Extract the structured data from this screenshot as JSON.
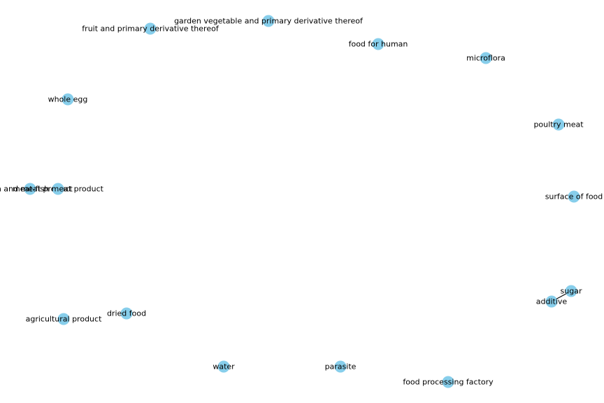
{
  "graph": {
    "node_color": "#87ceeb",
    "label_color": "#000000",
    "nodes": [
      {
        "id": "n1",
        "label": "garden vegetable and primary derivative thereof"
      },
      {
        "id": "n2",
        "label": "fruit and primary derivative thereof"
      },
      {
        "id": "n3",
        "label": "food for human"
      },
      {
        "id": "n4",
        "label": "microflora"
      },
      {
        "id": "n5",
        "label": "whole egg"
      },
      {
        "id": "n6",
        "label": "poultry meat"
      },
      {
        "id": "n7",
        "label": "fish and meat product"
      },
      {
        "id": "n8",
        "label": "meat-fish meat product"
      },
      {
        "id": "n9",
        "label": "surface of food"
      },
      {
        "id": "n10",
        "label": "sugar"
      },
      {
        "id": "n11",
        "label": "additive"
      },
      {
        "id": "n12",
        "label": "dried food"
      },
      {
        "id": "n13",
        "label": "agricultural product"
      },
      {
        "id": "n14",
        "label": "water"
      },
      {
        "id": "n15",
        "label": "parasite"
      },
      {
        "id": "n16",
        "label": "food processing factory"
      }
    ],
    "edges": [
      {
        "source": "n10",
        "target": "n11"
      }
    ]
  }
}
